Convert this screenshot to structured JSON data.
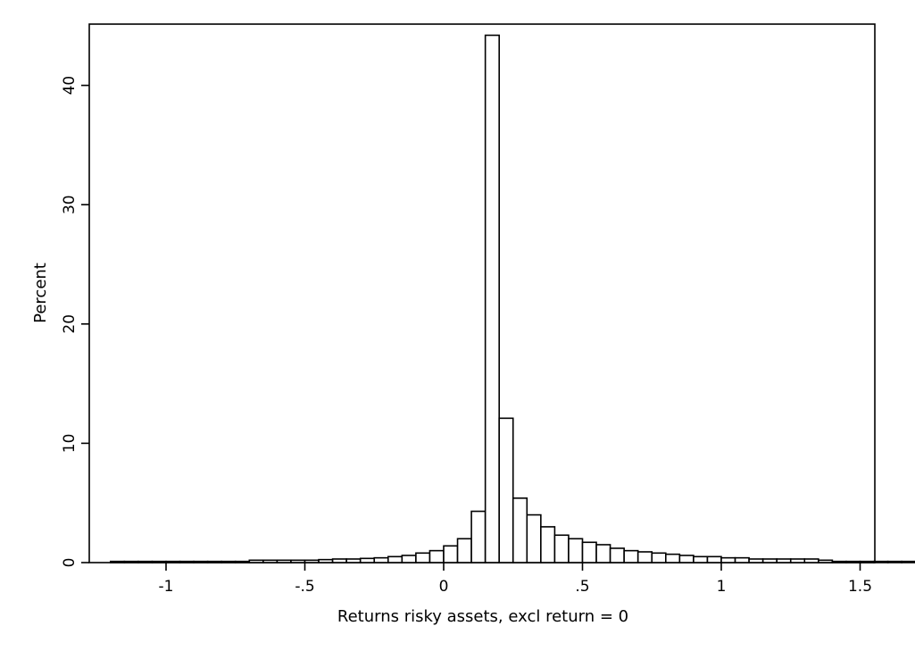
{
  "chart_data": {
    "type": "bar",
    "title": "",
    "xlabel": "Returns risky assets, excl return = 0",
    "ylabel": "Percent",
    "xlim": [
      -1.2,
      1.5
    ],
    "ylim": [
      0,
      45
    ],
    "grid": false,
    "legend": "none",
    "bin_width": 0.05,
    "bin_start": -1.2,
    "x_ticks": [
      {
        "value": -1,
        "label": "-1"
      },
      {
        "value": -0.5,
        "label": "-.5"
      },
      {
        "value": 0,
        "label": "0"
      },
      {
        "value": 0.5,
        "label": ".5"
      },
      {
        "value": 1,
        "label": "1"
      },
      {
        "value": 1.5,
        "label": "1.5"
      }
    ],
    "y_ticks": [
      {
        "value": 0,
        "label": "0"
      },
      {
        "value": 10,
        "label": "10"
      },
      {
        "value": 20,
        "label": "20"
      },
      {
        "value": 30,
        "label": "30"
      },
      {
        "value": 40,
        "label": "40"
      }
    ],
    "values": [
      0.1,
      0.1,
      0.1,
      0.1,
      0.1,
      0.1,
      0.1,
      0.1,
      0.1,
      0.1,
      0.2,
      0.2,
      0.2,
      0.2,
      0.2,
      0.25,
      0.3,
      0.3,
      0.35,
      0.4,
      0.5,
      0.6,
      0.8,
      1.0,
      1.4,
      2.0,
      4.3,
      44.2,
      12.1,
      5.4,
      4.0,
      3.0,
      2.3,
      2.0,
      1.7,
      1.5,
      1.2,
      1.0,
      0.9,
      0.8,
      0.7,
      0.6,
      0.5,
      0.5,
      0.4,
      0.4,
      0.3,
      0.3,
      0.3,
      0.3,
      0.3,
      0.2,
      0.1,
      0.1,
      0.1,
      0.1,
      0.1,
      0.1,
      0.1,
      0.1
    ],
    "colors": {
      "bar_fill": "#ffffff",
      "bar_stroke": "#000000",
      "background": "#ffffff"
    }
  }
}
